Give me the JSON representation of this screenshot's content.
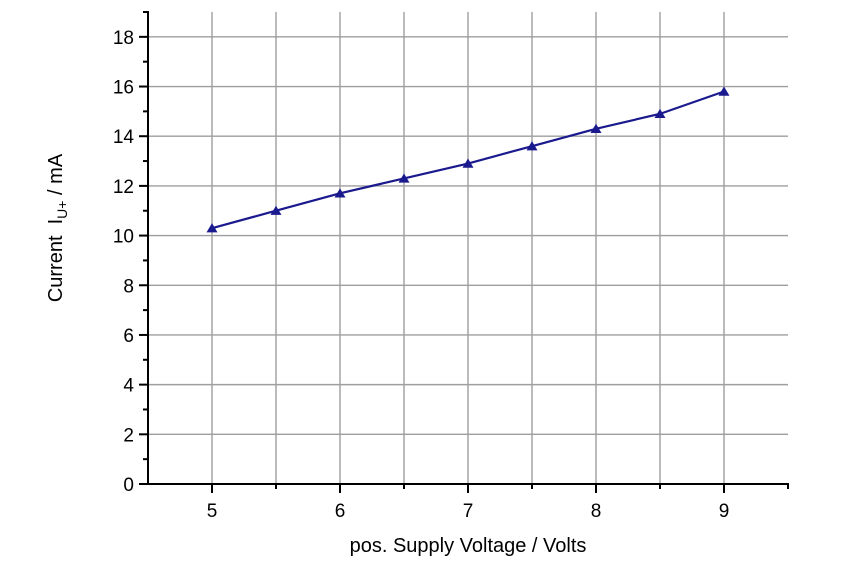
{
  "figure": {
    "background": "#ffffff"
  },
  "chart_data": {
    "type": "line",
    "title": "",
    "xlabel": "pos. Supply Voltage / Volts",
    "ylabel_prefix": "Current  I",
    "ylabel_sub": "U+",
    "ylabel_suffix": " / mA",
    "xlim": [
      4.5,
      9.5
    ],
    "ylim": [
      0,
      19
    ],
    "grid": true,
    "legend": "none",
    "series": [
      {
        "name": "Current I_U+",
        "marker": "triangle-up",
        "color": "#1a1a8e",
        "x": [
          5,
          5.5,
          6,
          6.5,
          7,
          7.5,
          8,
          8.5,
          9
        ],
        "y": [
          10.3,
          11.0,
          11.7,
          12.3,
          12.9,
          13.6,
          14.3,
          14.9,
          15.8
        ]
      }
    ],
    "x_major_ticks": [
      5,
      6,
      7,
      8,
      9
    ],
    "x_minor_ticks": [
      5.5,
      6.5,
      7.5,
      8.5,
      9.5
    ],
    "x_gridlines": [
      5,
      5.5,
      6,
      6.5,
      7,
      7.5,
      8,
      8.5,
      9
    ],
    "y_major_ticks": [
      0,
      2,
      4,
      6,
      8,
      10,
      12,
      14,
      16,
      18
    ],
    "y_minor_ticks": [
      1,
      3,
      5,
      7,
      9,
      11,
      13,
      15,
      17,
      19
    ],
    "y_gridlines": [
      2,
      4,
      6,
      8,
      10,
      12,
      14,
      16,
      18
    ],
    "grid_color": "#9e9e9e",
    "axis_color": "#000000",
    "text_color": "#000000"
  }
}
